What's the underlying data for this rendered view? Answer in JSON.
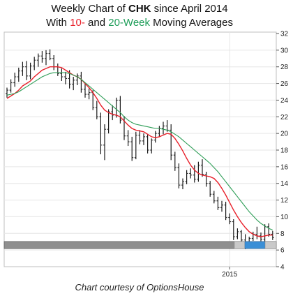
{
  "header": {
    "line1_prefix": "Weekly Chart of ",
    "line1_ticker": "CHK",
    "line1_suffix": " since April 2014",
    "line2_prefix": "With ",
    "line2_ma_short": "10-",
    "line2_mid": " and ",
    "line2_ma_long": "20-Week",
    "line2_suffix": " Moving Averages"
  },
  "credit": "Chart courtesy of OptionsHouse",
  "colors": {
    "ma_short": "#e8202a",
    "ma_long": "#2e9e57",
    "bars": "#1a1a1a",
    "grid": "#e6e6e6",
    "scrollbar_thumb": "#3b8fd6"
  },
  "chart_data": {
    "type": "line",
    "x_tick_labels": [
      "2015"
    ],
    "y_ticks": [
      4,
      6,
      8,
      10,
      12,
      14,
      16,
      18,
      20,
      22,
      24,
      26,
      28,
      30,
      32
    ],
    "ylim": [
      4,
      32
    ],
    "grid": true,
    "x_tick_positions": [
      {
        "label": "2015",
        "index": 57
      }
    ],
    "ohlc": [
      [
        24.8,
        25.5,
        24.3,
        25.2
      ],
      [
        25.2,
        26.5,
        24.9,
        26.1
      ],
      [
        26.1,
        27.3,
        25.6,
        26.8
      ],
      [
        26.8,
        27.9,
        26.2,
        27.5
      ],
      [
        27.5,
        28.6,
        26.9,
        28.0
      ],
      [
        28.0,
        28.7,
        26.4,
        26.9
      ],
      [
        26.9,
        28.5,
        26.5,
        28.1
      ],
      [
        28.1,
        29.2,
        27.6,
        28.8
      ],
      [
        28.8,
        29.6,
        28.0,
        29.3
      ],
      [
        29.3,
        29.9,
        28.5,
        29.0
      ],
      [
        29.0,
        30.0,
        28.2,
        29.6
      ],
      [
        29.6,
        30.1,
        28.8,
        29.0
      ],
      [
        29.0,
        29.4,
        27.6,
        28.0
      ],
      [
        28.0,
        28.4,
        26.9,
        27.2
      ],
      [
        27.2,
        27.8,
        26.3,
        26.8
      ],
      [
        26.8,
        27.4,
        25.9,
        26.6
      ],
      [
        26.6,
        27.6,
        25.4,
        25.9
      ],
      [
        25.9,
        26.8,
        25.2,
        26.4
      ],
      [
        26.4,
        27.2,
        25.8,
        26.9
      ],
      [
        26.9,
        27.4,
        24.9,
        25.3
      ],
      [
        25.3,
        26.0,
        24.3,
        24.7
      ],
      [
        24.7,
        25.4,
        24.1,
        24.9
      ],
      [
        24.9,
        25.2,
        22.8,
        23.1
      ],
      [
        23.1,
        23.9,
        21.7,
        22.0
      ],
      [
        22.0,
        22.5,
        17.5,
        18.6
      ],
      [
        18.6,
        21.1,
        16.8,
        20.5
      ],
      [
        20.5,
        22.9,
        20.0,
        22.6
      ],
      [
        22.6,
        23.4,
        21.6,
        22.2
      ],
      [
        22.2,
        24.3,
        21.9,
        24.0
      ],
      [
        24.0,
        24.5,
        21.2,
        21.6
      ],
      [
        21.6,
        22.1,
        19.2,
        19.7
      ],
      [
        19.7,
        20.4,
        18.5,
        19.0
      ],
      [
        19.0,
        19.6,
        16.7,
        17.1
      ],
      [
        17.1,
        20.2,
        16.9,
        19.8
      ],
      [
        19.8,
        20.4,
        18.7,
        19.1
      ],
      [
        19.1,
        20.0,
        18.6,
        19.6
      ],
      [
        19.6,
        19.9,
        17.6,
        18.0
      ],
      [
        18.0,
        19.4,
        17.6,
        19.2
      ],
      [
        19.2,
        20.3,
        18.9,
        20.0
      ],
      [
        20.0,
        20.9,
        19.6,
        20.6
      ],
      [
        20.6,
        21.4,
        19.9,
        20.9
      ],
      [
        20.9,
        21.6,
        20.2,
        20.4
      ],
      [
        20.4,
        21.1,
        16.8,
        17.4
      ],
      [
        17.4,
        17.8,
        15.5,
        15.9
      ],
      [
        15.9,
        16.4,
        13.4,
        13.8
      ],
      [
        13.8,
        14.6,
        13.3,
        14.2
      ],
      [
        14.2,
        15.6,
        13.9,
        15.2
      ],
      [
        15.2,
        15.8,
        14.6,
        15.0
      ],
      [
        15.0,
        16.2,
        14.1,
        14.5
      ],
      [
        14.5,
        16.6,
        14.2,
        16.2
      ],
      [
        16.2,
        16.9,
        14.8,
        15.1
      ],
      [
        15.1,
        15.4,
        13.6,
        14.0
      ],
      [
        14.0,
        14.3,
        12.4,
        12.7
      ],
      [
        12.7,
        13.1,
        11.6,
        11.9
      ],
      [
        11.9,
        12.4,
        10.8,
        11.1
      ],
      [
        11.1,
        11.9,
        10.6,
        11.4
      ],
      [
        11.4,
        11.8,
        9.6,
        9.9
      ],
      [
        9.9,
        10.4,
        9.1,
        9.4
      ],
      [
        9.4,
        9.7,
        7.2,
        7.6
      ],
      [
        7.6,
        8.6,
        7.3,
        8.2
      ],
      [
        8.2,
        8.4,
        6.9,
        7.2
      ],
      [
        7.2,
        7.9,
        6.1,
        6.6
      ],
      [
        6.6,
        7.6,
        6.3,
        7.4
      ],
      [
        7.4,
        8.2,
        7.1,
        7.9
      ],
      [
        7.9,
        8.8,
        7.3,
        7.7
      ],
      [
        7.7,
        8.1,
        6.8,
        7.3
      ],
      [
        7.3,
        9.1,
        7.0,
        8.8
      ],
      [
        8.8,
        9.2,
        7.6,
        7.9
      ],
      [
        7.9,
        8.3,
        7.2,
        7.5
      ]
    ],
    "series": [
      {
        "name": "10-Week",
        "values": [
          24.2,
          24.5,
          24.8,
          25.2,
          25.7,
          26.0,
          26.3,
          26.8,
          27.2,
          27.6,
          27.8,
          28.0,
          28.0,
          28.0,
          27.9,
          27.6,
          27.3,
          27.0,
          26.8,
          26.5,
          26.0,
          25.5,
          24.9,
          24.2,
          23.4,
          22.8,
          22.5,
          22.3,
          22.2,
          22.0,
          21.5,
          21.0,
          20.6,
          20.4,
          20.3,
          20.2,
          19.9,
          19.6,
          19.5,
          19.6,
          19.8,
          20.0,
          19.9,
          19.4,
          18.7,
          17.9,
          17.0,
          16.2,
          15.6,
          15.2,
          15.0,
          14.9,
          14.8,
          14.6,
          14.1,
          13.4,
          12.6,
          11.7,
          10.8,
          10.0,
          9.3,
          8.7,
          8.2,
          7.9,
          7.7,
          7.6,
          7.7,
          7.8,
          7.8
        ]
      },
      {
        "name": "20-Week",
        "values": [
          24.6,
          24.7,
          24.8,
          25.0,
          25.3,
          25.6,
          25.9,
          26.2,
          26.5,
          26.8,
          27.0,
          27.2,
          27.3,
          27.3,
          27.3,
          27.3,
          27.2,
          27.0,
          26.8,
          26.5,
          26.1,
          25.7,
          25.3,
          24.9,
          24.5,
          24.1,
          23.7,
          23.3,
          22.9,
          22.5,
          22.0,
          21.6,
          21.3,
          21.1,
          21.0,
          20.9,
          20.8,
          20.7,
          20.6,
          20.6,
          20.5,
          20.4,
          20.2,
          19.9,
          19.6,
          19.2,
          18.8,
          18.4,
          18.0,
          17.6,
          17.2,
          16.8,
          16.4,
          15.9,
          15.4,
          14.8,
          14.2,
          13.6,
          13.0,
          12.4,
          11.8,
          11.2,
          10.6,
          10.1,
          9.6,
          9.2,
          8.9,
          8.6,
          8.4
        ]
      }
    ]
  }
}
